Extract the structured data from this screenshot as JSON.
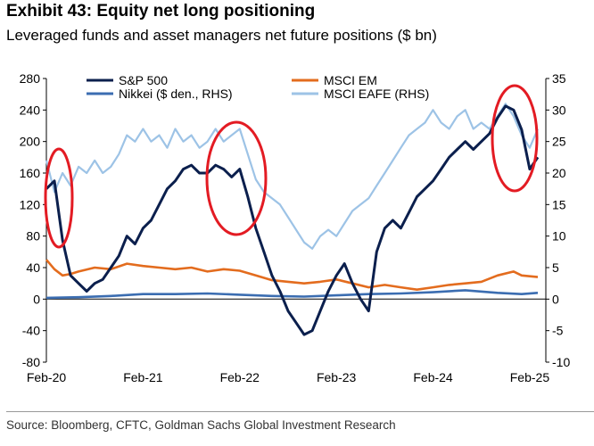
{
  "title": "Exhibit 43: Equity net long positioning",
  "subtitle": "Leveraged funds and asset managers net future positions ($ bn)",
  "source": "Source: Bloomberg, CFTC, Goldman Sachs Global Investment Research",
  "chart_data": {
    "type": "line",
    "x_ticks": [
      "Feb-20",
      "Feb-21",
      "Feb-22",
      "Feb-23",
      "Feb-24",
      "Feb-25"
    ],
    "xlim": [
      "2020-02",
      "2025-04"
    ],
    "y_left": {
      "ticks": [
        "280",
        "240",
        "200",
        "160",
        "120",
        "80",
        "40",
        "0",
        "-40",
        "-80"
      ],
      "min": -80,
      "max": 280
    },
    "y_right": {
      "ticks": [
        "35",
        "30",
        "25",
        "20",
        "15",
        "10",
        "5",
        "0",
        "-5",
        "-10"
      ],
      "min": -10,
      "max": 35
    },
    "grid": false,
    "legend_position": "top",
    "annotations": [
      "red ellipse around Feb-20 peak",
      "red ellipse around Feb-22 peak",
      "red ellipse around Feb-25 peak"
    ],
    "series": [
      {
        "name": "S&P 500",
        "axis": "left",
        "color": "#0b1f4d",
        "points": [
          [
            "2020-02",
            140
          ],
          [
            "2020-03",
            150
          ],
          [
            "2020-04",
            75
          ],
          [
            "2020-05",
            30
          ],
          [
            "2020-06",
            20
          ],
          [
            "2020-07",
            10
          ],
          [
            "2020-08",
            20
          ],
          [
            "2020-09",
            25
          ],
          [
            "2020-10",
            40
          ],
          [
            "2020-11",
            55
          ],
          [
            "2020-12",
            80
          ],
          [
            "2021-01",
            70
          ],
          [
            "2021-02",
            90
          ],
          [
            "2021-03",
            100
          ],
          [
            "2021-04",
            120
          ],
          [
            "2021-05",
            140
          ],
          [
            "2021-06",
            150
          ],
          [
            "2021-07",
            165
          ],
          [
            "2021-08",
            170
          ],
          [
            "2021-09",
            160
          ],
          [
            "2021-10",
            160
          ],
          [
            "2021-11",
            170
          ],
          [
            "2021-12",
            165
          ],
          [
            "2022-01",
            155
          ],
          [
            "2022-02",
            165
          ],
          [
            "2022-03",
            130
          ],
          [
            "2022-04",
            90
          ],
          [
            "2022-05",
            60
          ],
          [
            "2022-06",
            30
          ],
          [
            "2022-07",
            10
          ],
          [
            "2022-08",
            -15
          ],
          [
            "2022-09",
            -30
          ],
          [
            "2022-10",
            -45
          ],
          [
            "2022-11",
            -40
          ],
          [
            "2022-12",
            -15
          ],
          [
            "2023-01",
            10
          ],
          [
            "2023-02",
            30
          ],
          [
            "2023-03",
            45
          ],
          [
            "2023-04",
            20
          ],
          [
            "2023-05",
            0
          ],
          [
            "2023-06",
            -15
          ],
          [
            "2023-07",
            60
          ],
          [
            "2023-08",
            90
          ],
          [
            "2023-09",
            100
          ],
          [
            "2023-10",
            90
          ],
          [
            "2023-11",
            110
          ],
          [
            "2023-12",
            130
          ],
          [
            "2024-01",
            140
          ],
          [
            "2024-02",
            150
          ],
          [
            "2024-03",
            165
          ],
          [
            "2024-04",
            180
          ],
          [
            "2024-05",
            190
          ],
          [
            "2024-06",
            200
          ],
          [
            "2024-07",
            190
          ],
          [
            "2024-08",
            200
          ],
          [
            "2024-09",
            210
          ],
          [
            "2024-10",
            230
          ],
          [
            "2024-11",
            245
          ],
          [
            "2024-12",
            240
          ],
          [
            "2025-01",
            215
          ],
          [
            "2025-02",
            165
          ],
          [
            "2025-03",
            180
          ]
        ]
      },
      {
        "name": "MSCI EM",
        "axis": "left",
        "color": "#e36c1e",
        "points": [
          [
            "2020-02",
            50
          ],
          [
            "2020-03",
            38
          ],
          [
            "2020-04",
            30
          ],
          [
            "2020-05",
            32
          ],
          [
            "2020-06",
            35
          ],
          [
            "2020-08",
            40
          ],
          [
            "2020-10",
            38
          ],
          [
            "2020-12",
            45
          ],
          [
            "2021-02",
            42
          ],
          [
            "2021-04",
            40
          ],
          [
            "2021-06",
            38
          ],
          [
            "2021-08",
            40
          ],
          [
            "2021-10",
            35
          ],
          [
            "2021-12",
            38
          ],
          [
            "2022-02",
            36
          ],
          [
            "2022-04",
            30
          ],
          [
            "2022-06",
            24
          ],
          [
            "2022-08",
            22
          ],
          [
            "2022-10",
            20
          ],
          [
            "2022-12",
            22
          ],
          [
            "2023-02",
            25
          ],
          [
            "2023-04",
            20
          ],
          [
            "2023-06",
            15
          ],
          [
            "2023-08",
            18
          ],
          [
            "2023-10",
            15
          ],
          [
            "2023-12",
            12
          ],
          [
            "2024-02",
            15
          ],
          [
            "2024-04",
            18
          ],
          [
            "2024-06",
            20
          ],
          [
            "2024-08",
            22
          ],
          [
            "2024-10",
            30
          ],
          [
            "2024-12",
            35
          ],
          [
            "2025-01",
            30
          ],
          [
            "2025-03",
            28
          ]
        ]
      },
      {
        "name": "Nikkei ($ den., RHS)",
        "axis": "right",
        "color": "#3b6db1",
        "points": [
          [
            "2020-02",
            0.2
          ],
          [
            "2020-06",
            0.3
          ],
          [
            "2020-10",
            0.5
          ],
          [
            "2021-02",
            0.8
          ],
          [
            "2021-06",
            0.8
          ],
          [
            "2021-10",
            0.9
          ],
          [
            "2022-02",
            0.7
          ],
          [
            "2022-06",
            0.5
          ],
          [
            "2022-10",
            0.4
          ],
          [
            "2023-02",
            0.6
          ],
          [
            "2023-06",
            0.8
          ],
          [
            "2023-10",
            0.9
          ],
          [
            "2024-02",
            1.1
          ],
          [
            "2024-06",
            1.4
          ],
          [
            "2024-10",
            1.0
          ],
          [
            "2025-01",
            0.8
          ],
          [
            "2025-03",
            1.0
          ]
        ]
      },
      {
        "name": "MSCI EAFE (RHS)",
        "axis": "right",
        "color": "#9dc3e6",
        "points": [
          [
            "2020-02",
            22
          ],
          [
            "2020-03",
            17
          ],
          [
            "2020-04",
            20
          ],
          [
            "2020-05",
            18
          ],
          [
            "2020-06",
            21
          ],
          [
            "2020-07",
            20
          ],
          [
            "2020-08",
            22
          ],
          [
            "2020-09",
            20
          ],
          [
            "2020-10",
            21
          ],
          [
            "2020-11",
            23
          ],
          [
            "2020-12",
            26
          ],
          [
            "2021-01",
            25
          ],
          [
            "2021-02",
            27
          ],
          [
            "2021-03",
            25
          ],
          [
            "2021-04",
            26
          ],
          [
            "2021-05",
            24
          ],
          [
            "2021-06",
            27
          ],
          [
            "2021-07",
            25
          ],
          [
            "2021-08",
            26
          ],
          [
            "2021-09",
            24
          ],
          [
            "2021-10",
            25
          ],
          [
            "2021-11",
            27
          ],
          [
            "2021-12",
            25
          ],
          [
            "2022-01",
            26
          ],
          [
            "2022-02",
            27
          ],
          [
            "2022-03",
            23
          ],
          [
            "2022-04",
            19
          ],
          [
            "2022-05",
            17
          ],
          [
            "2022-06",
            16
          ],
          [
            "2022-07",
            15
          ],
          [
            "2022-08",
            13
          ],
          [
            "2022-09",
            11
          ],
          [
            "2022-10",
            9
          ],
          [
            "2022-11",
            8
          ],
          [
            "2022-12",
            10
          ],
          [
            "2023-01",
            11
          ],
          [
            "2023-02",
            10
          ],
          [
            "2023-03",
            12
          ],
          [
            "2023-04",
            14
          ],
          [
            "2023-05",
            15
          ],
          [
            "2023-06",
            16
          ],
          [
            "2023-07",
            18
          ],
          [
            "2023-08",
            20
          ],
          [
            "2023-09",
            22
          ],
          [
            "2023-10",
            24
          ],
          [
            "2023-11",
            26
          ],
          [
            "2023-12",
            27
          ],
          [
            "2024-01",
            28
          ],
          [
            "2024-02",
            30
          ],
          [
            "2024-03",
            28
          ],
          [
            "2024-04",
            27
          ],
          [
            "2024-05",
            29
          ],
          [
            "2024-06",
            30
          ],
          [
            "2024-07",
            27
          ],
          [
            "2024-08",
            28
          ],
          [
            "2024-09",
            27
          ],
          [
            "2024-10",
            29
          ],
          [
            "2024-11",
            31
          ],
          [
            "2024-12",
            29
          ],
          [
            "2025-01",
            26
          ],
          [
            "2025-02",
            24
          ],
          [
            "2025-03",
            27
          ]
        ]
      }
    ]
  }
}
